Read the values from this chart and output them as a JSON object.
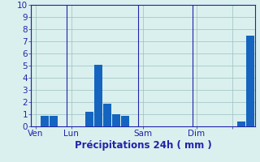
{
  "xlabel": "Précipitations 24h ( mm )",
  "ylim": [
    0,
    10
  ],
  "bar_color": "#1565C0",
  "background_color": "#daf0ee",
  "grid_color": "#9bbfbf",
  "axis_color": "#2222aa",
  "label_color": "#2222aa",
  "tick_label_color": "#2222aa",
  "bar_values": [
    0,
    0.9,
    0.9,
    0,
    0,
    0,
    1.2,
    5.1,
    1.9,
    1.0,
    0.9,
    0,
    0,
    0,
    0,
    0,
    0,
    0,
    0,
    0,
    0,
    0,
    0,
    0.4,
    7.5
  ],
  "day_positions": [
    0,
    4,
    12,
    18,
    22
  ],
  "day_labels": [
    "Ven",
    "Lun",
    "Sam",
    "Dim",
    ""
  ],
  "yticks": [
    0,
    1,
    2,
    3,
    4,
    5,
    6,
    7,
    8,
    9,
    10
  ],
  "num_bars": 25,
  "xlabel_fontsize": 8.5,
  "tick_fontsize": 7.5
}
